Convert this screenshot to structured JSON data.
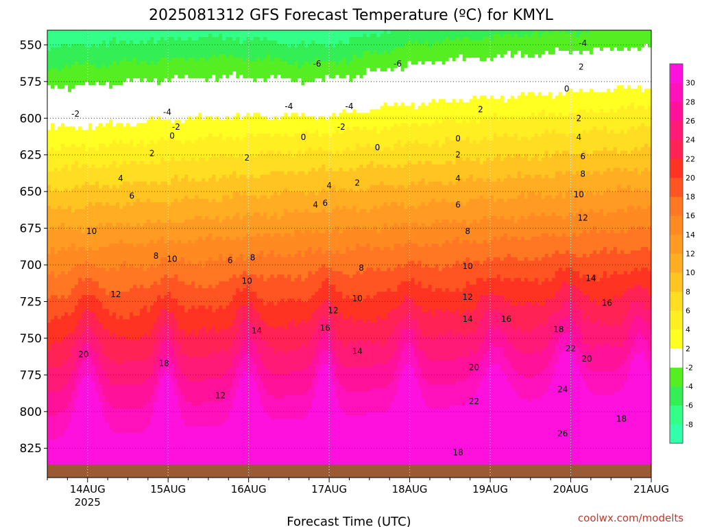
{
  "chart_data": {
    "type": "heatmap",
    "title": "2025081312 GFS Forecast Temperature (ºC) for KMYL",
    "xlabel": "Forecast Time (UTC)",
    "ylabel": "",
    "credit": "coolwx.com/modelts",
    "y_axis": {
      "inverted": true,
      "ylim": [
        540,
        845
      ],
      "ticks": [
        550,
        575,
        600,
        625,
        650,
        675,
        700,
        725,
        750,
        775,
        800,
        825
      ]
    },
    "x_axis": {
      "xlim_days": [
        13.5,
        21.0
      ],
      "ticks": [
        {
          "label": "14AUG",
          "day": 14,
          "sub": "2025"
        },
        {
          "label": "15AUG",
          "day": 15,
          "sub": ""
        },
        {
          "label": "16AUG",
          "day": 16,
          "sub": ""
        },
        {
          "label": "17AUG",
          "day": 17,
          "sub": ""
        },
        {
          "label": "18AUG",
          "day": 18,
          "sub": ""
        },
        {
          "label": "19AUG",
          "day": 19,
          "sub": ""
        },
        {
          "label": "20AUG",
          "day": 20,
          "sub": ""
        },
        {
          "label": "21AUG",
          "day": 21,
          "sub": ""
        }
      ]
    },
    "grid": true,
    "colorbar": {
      "levels": [
        -10,
        -8,
        -6,
        -4,
        -2,
        2,
        4,
        6,
        8,
        10,
        12,
        14,
        16,
        18,
        20,
        22,
        24,
        26,
        28,
        30,
        32
      ],
      "tick_labels": [
        "-8",
        "-6",
        "-4",
        "-2",
        "2",
        "4",
        "6",
        "8",
        "10",
        "12",
        "14",
        "16",
        "18",
        "20",
        "22",
        "24",
        "26",
        "28",
        "30"
      ],
      "colors": [
        "#33ffaa",
        "#33ff88",
        "#33ee55",
        "#55ee22",
        "#ffffff",
        "#ffff22",
        "#ffee22",
        "#ffdd22",
        "#ffc422",
        "#ffad22",
        "#ff9a22",
        "#ff8a22",
        "#ff7722",
        "#ff5522",
        "#ff3322",
        "#ff2255",
        "#ff1a77",
        "#ff1199",
        "#ff11bb",
        "#ff11dd"
      ]
    },
    "contour_labels": [
      {
        "t": 13.85,
        "p": 597,
        "v": "-2"
      },
      {
        "t": 14.99,
        "p": 596,
        "v": "-4"
      },
      {
        "t": 15.1,
        "p": 606,
        "v": "-2"
      },
      {
        "t": 16.85,
        "p": 563,
        "v": "-6"
      },
      {
        "t": 17.85,
        "p": 563,
        "v": "-6"
      },
      {
        "t": 16.5,
        "p": 592,
        "v": "-4"
      },
      {
        "t": 17.25,
        "p": 592,
        "v": "-4"
      },
      {
        "t": 17.15,
        "p": 606,
        "v": "-2"
      },
      {
        "t": 18.88,
        "p": 594,
        "v": "2"
      },
      {
        "t": 20.15,
        "p": 549,
        "v": "-4"
      },
      {
        "t": 20.13,
        "p": 565,
        "v": "2"
      },
      {
        "t": 19.95,
        "p": 580,
        "v": "0"
      },
      {
        "t": 20.1,
        "p": 600,
        "v": "2"
      },
      {
        "t": 15.05,
        "p": 612,
        "v": "0"
      },
      {
        "t": 16.68,
        "p": 613,
        "v": "0"
      },
      {
        "t": 17.6,
        "p": 620,
        "v": "0"
      },
      {
        "t": 18.6,
        "p": 614,
        "v": "0"
      },
      {
        "t": 14.8,
        "p": 624,
        "v": "2"
      },
      {
        "t": 15.98,
        "p": 627,
        "v": "2"
      },
      {
        "t": 17.35,
        "p": 644,
        "v": "2"
      },
      {
        "t": 18.6,
        "p": 625,
        "v": "2"
      },
      {
        "t": 14.41,
        "p": 641,
        "v": "4"
      },
      {
        "t": 17.0,
        "p": 646,
        "v": "4"
      },
      {
        "t": 18.6,
        "p": 641,
        "v": "4"
      },
      {
        "t": 20.1,
        "p": 613,
        "v": "4"
      },
      {
        "t": 14.55,
        "p": 653,
        "v": "6"
      },
      {
        "t": 16.83,
        "p": 659,
        "v": "4"
      },
      {
        "t": 16.95,
        "p": 658,
        "v": "6"
      },
      {
        "t": 18.6,
        "p": 659,
        "v": "6"
      },
      {
        "t": 20.15,
        "p": 626,
        "v": "6"
      },
      {
        "t": 20.15,
        "p": 638,
        "v": "8"
      },
      {
        "t": 14.05,
        "p": 677,
        "v": "10"
      },
      {
        "t": 14.85,
        "p": 694,
        "v": "8"
      },
      {
        "t": 15.05,
        "p": 696,
        "v": "10"
      },
      {
        "t": 15.77,
        "p": 697,
        "v": "6"
      },
      {
        "t": 16.05,
        "p": 695,
        "v": "8"
      },
      {
        "t": 15.98,
        "p": 711,
        "v": "10"
      },
      {
        "t": 17.4,
        "p": 702,
        "v": "8"
      },
      {
        "t": 17.35,
        "p": 723,
        "v": "10"
      },
      {
        "t": 18.72,
        "p": 677,
        "v": "8"
      },
      {
        "t": 18.72,
        "p": 701,
        "v": "10"
      },
      {
        "t": 18.72,
        "p": 722,
        "v": "12"
      },
      {
        "t": 20.1,
        "p": 652,
        "v": "10"
      },
      {
        "t": 20.15,
        "p": 668,
        "v": "12"
      },
      {
        "t": 20.25,
        "p": 709,
        "v": "14"
      },
      {
        "t": 14.35,
        "p": 720,
        "v": "12"
      },
      {
        "t": 17.05,
        "p": 731,
        "v": "12"
      },
      {
        "t": 16.1,
        "p": 745,
        "v": "14"
      },
      {
        "t": 16.95,
        "p": 743,
        "v": "16"
      },
      {
        "t": 17.35,
        "p": 759,
        "v": "14"
      },
      {
        "t": 18.72,
        "p": 737,
        "v": "14"
      },
      {
        "t": 19.2,
        "p": 737,
        "v": "16"
      },
      {
        "t": 19.85,
        "p": 744,
        "v": "18"
      },
      {
        "t": 20.45,
        "p": 726,
        "v": "16"
      },
      {
        "t": 13.95,
        "p": 761,
        "v": "20"
      },
      {
        "t": 14.95,
        "p": 767,
        "v": "18"
      },
      {
        "t": 15.65,
        "p": 789,
        "v": "12"
      },
      {
        "t": 18.8,
        "p": 770,
        "v": "20"
      },
      {
        "t": 18.8,
        "p": 793,
        "v": "22"
      },
      {
        "t": 20.0,
        "p": 757,
        "v": "22"
      },
      {
        "t": 20.2,
        "p": 764,
        "v": "20"
      },
      {
        "t": 19.9,
        "p": 785,
        "v": "24"
      },
      {
        "t": 20.63,
        "p": 805,
        "v": "18"
      },
      {
        "t": 19.9,
        "p": 815,
        "v": "26"
      },
      {
        "t": 18.6,
        "p": 828,
        "v": "18"
      }
    ]
  }
}
